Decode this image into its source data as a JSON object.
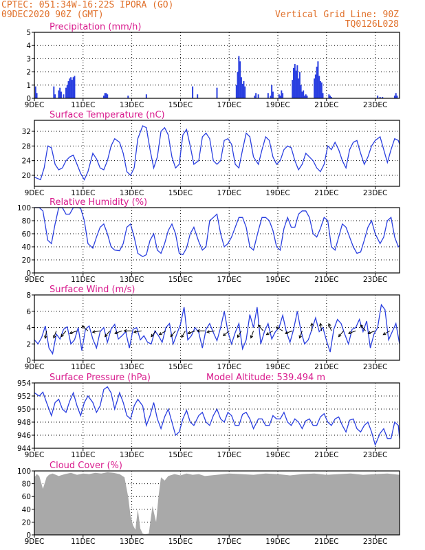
{
  "header": {
    "left_line1": "CPTEC:  051:34W-16:22S  IPORA (GO)",
    "left_line2": "09DEC2020 90Z (GMT)",
    "right_line1": "Vertical Grid Line: 90Z",
    "right_line2": "TQ0126L028"
  },
  "colors": {
    "header": "#e0702a",
    "title": "#d8198c",
    "series": "#2a3fe0",
    "cloud": "#a9a9a9",
    "grid": "#000000"
  },
  "x_axis": {
    "tick_labels": [
      "9DEC",
      "11DEC",
      "13DEC",
      "15DEC",
      "17DEC",
      "19DEC",
      "21DEC",
      "23DEC"
    ],
    "tick_days": [
      0,
      2,
      4,
      6,
      8,
      10,
      12,
      14
    ],
    "range_days": [
      0,
      15
    ]
  },
  "chart_data": [
    {
      "id": "precip",
      "type": "bar",
      "title": "Precipitation (mm/h)",
      "ylim": [
        0,
        5
      ],
      "yticks": [
        0,
        1,
        2,
        3,
        4,
        5
      ],
      "time_days": [
        0.05,
        0.08,
        0.1,
        0.8,
        0.85,
        1.0,
        1.05,
        1.1,
        1.2,
        1.3,
        1.35,
        1.4,
        1.45,
        1.5,
        1.55,
        1.6,
        1.65,
        2.85,
        2.9,
        2.95,
        3.0,
        3.85,
        4.6,
        6.5,
        6.7,
        7.5,
        8.3,
        8.35,
        8.4,
        8.45,
        8.5,
        8.55,
        8.6,
        8.65,
        9.05,
        9.1,
        9.2,
        9.6,
        9.7,
        9.75,
        9.8,
        10.05,
        10.1,
        10.15,
        10.2,
        10.6,
        10.65,
        10.7,
        10.75,
        10.8,
        10.85,
        10.9,
        10.95,
        11.0,
        11.05,
        11.1,
        11.15,
        11.2,
        11.5,
        11.55,
        11.6,
        11.65,
        11.7,
        11.75,
        11.8,
        11.85,
        12.1,
        12.15,
        12.2,
        14.1,
        14.2,
        14.3,
        14.8,
        14.85,
        14.9
      ],
      "values": [
        0.9,
        0.2,
        0.4,
        0.9,
        0.3,
        0.6,
        0.8,
        0.5,
        0.3,
        0.8,
        1.0,
        1.3,
        1.5,
        1.6,
        1.4,
        1.6,
        1.7,
        0.2,
        0.4,
        0.4,
        0.3,
        0.2,
        0.3,
        0.9,
        0.3,
        0.8,
        1.0,
        2.0,
        3.2,
        2.8,
        1.6,
        1.1,
        1.3,
        0.9,
        0.2,
        0.4,
        0.3,
        0.4,
        0.2,
        1.0,
        0.5,
        0.3,
        0.2,
        0.6,
        0.4,
        1.4,
        2.3,
        2.6,
        2.1,
        2.5,
        1.5,
        2.0,
        1.0,
        0.5,
        0.6,
        0.2,
        0.3,
        0.2,
        1.5,
        1.8,
        2.4,
        2.8,
        1.7,
        1.3,
        1.2,
        0.4,
        0.3,
        0.2,
        0.1,
        0.2,
        0.1,
        0.1,
        0.2,
        0.4,
        0.2
      ]
    },
    {
      "id": "temp",
      "type": "line",
      "title": "Surface Temperature (nC)",
      "ylim": [
        17,
        35
      ],
      "yticks": [
        20,
        24,
        28,
        32
      ],
      "time_days": [
        0,
        0.25,
        0.4,
        0.55,
        0.7,
        0.85,
        1.0,
        1.15,
        1.3,
        1.45,
        1.6,
        1.75,
        1.9,
        2.05,
        2.2,
        2.4,
        2.55,
        2.7,
        2.85,
        3.0,
        3.15,
        3.3,
        3.5,
        3.65,
        3.8,
        3.95,
        4.1,
        4.25,
        4.45,
        4.6,
        4.75,
        4.9,
        5.05,
        5.2,
        5.35,
        5.5,
        5.65,
        5.8,
        5.95,
        6.1,
        6.25,
        6.4,
        6.55,
        6.75,
        6.9,
        7.05,
        7.2,
        7.35,
        7.5,
        7.65,
        7.8,
        7.95,
        8.1,
        8.25,
        8.4,
        8.55,
        8.7,
        8.85,
        9.0,
        9.2,
        9.35,
        9.5,
        9.65,
        9.8,
        9.95,
        10.1,
        10.25,
        10.4,
        10.55,
        10.7,
        10.85,
        11.0,
        11.15,
        11.3,
        11.45,
        11.6,
        11.75,
        11.9,
        12.05,
        12.2,
        12.35,
        12.5,
        12.65,
        12.8,
        12.95,
        13.1,
        13.25,
        13.4,
        13.55,
        13.7,
        13.85,
        14.0,
        14.2,
        14.35,
        14.5,
        14.65,
        14.8,
        14.95,
        15.0
      ],
      "values": [
        19.5,
        18.8,
        22,
        28,
        27.5,
        23,
        21.5,
        22,
        24,
        25,
        25.5,
        23,
        20.5,
        18.8,
        21,
        26,
        24.5,
        22,
        21.5,
        24,
        28,
        30,
        29,
        26,
        21,
        20,
        22,
        30,
        33.5,
        33,
        27,
        22,
        25,
        32,
        33,
        31,
        25,
        22,
        23,
        31,
        32.5,
        28,
        23,
        24,
        30.5,
        31.5,
        30,
        24,
        23,
        24,
        29.5,
        30,
        28.5,
        23,
        22,
        27,
        31.5,
        30.5,
        25,
        23,
        27,
        30.5,
        29.5,
        25,
        23,
        24,
        27,
        28,
        27.5,
        24,
        21.5,
        23,
        26,
        25,
        24,
        22,
        21,
        23,
        28,
        27,
        29,
        27,
        24,
        22,
        27,
        29,
        29.5,
        26,
        23,
        25,
        28,
        29.5,
        30.5,
        27,
        23.5,
        27,
        30,
        29.5,
        28.5
      ]
    },
    {
      "id": "rh",
      "type": "line",
      "title": "Relative Humidity (%)",
      "ylim": [
        0,
        100
      ],
      "yticks": [
        0,
        20,
        40,
        60,
        80,
        100
      ],
      "time_days": [
        0,
        0.2,
        0.35,
        0.55,
        0.7,
        0.85,
        1.0,
        1.15,
        1.3,
        1.45,
        1.6,
        1.75,
        1.9,
        2.05,
        2.2,
        2.4,
        2.55,
        2.7,
        2.85,
        3.0,
        3.15,
        3.3,
        3.5,
        3.65,
        3.8,
        3.95,
        4.1,
        4.25,
        4.45,
        4.6,
        4.75,
        4.9,
        5.05,
        5.2,
        5.35,
        5.5,
        5.65,
        5.8,
        5.95,
        6.1,
        6.25,
        6.4,
        6.55,
        6.75,
        6.9,
        7.05,
        7.2,
        7.35,
        7.5,
        7.65,
        7.8,
        7.95,
        8.1,
        8.25,
        8.4,
        8.55,
        8.7,
        8.85,
        9.0,
        9.2,
        9.35,
        9.5,
        9.65,
        9.8,
        9.95,
        10.1,
        10.25,
        10.4,
        10.55,
        10.7,
        10.85,
        11.0,
        11.15,
        11.3,
        11.45,
        11.6,
        11.75,
        11.9,
        12.05,
        12.2,
        12.35,
        12.5,
        12.65,
        12.8,
        12.95,
        13.1,
        13.25,
        13.4,
        13.55,
        13.7,
        13.85,
        14.0,
        14.2,
        14.35,
        14.5,
        14.65,
        14.8,
        14.95,
        15.0
      ],
      "values": [
        100,
        100,
        95,
        50,
        45,
        75,
        100,
        100,
        90,
        90,
        100,
        100,
        99,
        80,
        45,
        38,
        55,
        70,
        75,
        60,
        40,
        35,
        34,
        45,
        70,
        75,
        55,
        30,
        25,
        28,
        50,
        60,
        35,
        30,
        45,
        65,
        75,
        60,
        30,
        28,
        38,
        60,
        70,
        48,
        35,
        40,
        80,
        85,
        90,
        60,
        40,
        45,
        55,
        70,
        85,
        85,
        70,
        40,
        35,
        65,
        85,
        85,
        80,
        65,
        40,
        35,
        68,
        85,
        70,
        70,
        90,
        95,
        95,
        85,
        60,
        55,
        68,
        85,
        80,
        40,
        35,
        55,
        75,
        70,
        55,
        40,
        30,
        32,
        50,
        70,
        80,
        60,
        45,
        55,
        80,
        85,
        55,
        40,
        42
      ]
    },
    {
      "id": "wind",
      "type": "line",
      "title": "Surface Wind (m/s)",
      "ylim": [
        0,
        8
      ],
      "yticks": [
        0,
        2,
        4,
        6,
        8
      ],
      "time_days": [
        0,
        0.15,
        0.3,
        0.45,
        0.6,
        0.75,
        0.9,
        1.05,
        1.2,
        1.35,
        1.5,
        1.65,
        1.8,
        1.95,
        2.1,
        2.25,
        2.4,
        2.55,
        2.7,
        2.85,
        3.0,
        3.15,
        3.3,
        3.45,
        3.6,
        3.75,
        3.9,
        4.05,
        4.2,
        4.35,
        4.5,
        4.65,
        4.8,
        4.95,
        5.1,
        5.25,
        5.4,
        5.55,
        5.7,
        5.85,
        6.0,
        6.15,
        6.3,
        6.45,
        6.6,
        6.75,
        6.9,
        7.05,
        7.2,
        7.35,
        7.5,
        7.65,
        7.8,
        7.95,
        8.1,
        8.25,
        8.4,
        8.55,
        8.7,
        8.85,
        9.0,
        9.15,
        9.3,
        9.45,
        9.6,
        9.75,
        9.9,
        10.05,
        10.2,
        10.35,
        10.5,
        10.65,
        10.8,
        10.95,
        11.1,
        11.25,
        11.4,
        11.55,
        11.7,
        11.85,
        12.0,
        12.15,
        12.3,
        12.45,
        12.6,
        12.75,
        12.9,
        13.05,
        13.2,
        13.35,
        13.5,
        13.65,
        13.8,
        13.95,
        14.1,
        14.25,
        14.4,
        14.55,
        14.7,
        14.85,
        15.0
      ],
      "values": [
        2.5,
        2.0,
        2.8,
        4.2,
        1.5,
        0.8,
        3.2,
        2.6,
        3.8,
        4.1,
        2.0,
        2.5,
        4.0,
        1.2,
        3.8,
        4.2,
        2.6,
        1.5,
        3.5,
        4.0,
        2.2,
        3.8,
        4.4,
        2.6,
        3.0,
        3.5,
        1.5,
        3.8,
        4.0,
        2.5,
        3.0,
        2.2,
        2.0,
        3.6,
        3.0,
        2.2,
        4.0,
        4.5,
        2.0,
        3.2,
        4.4,
        6.5,
        2.5,
        3.0,
        4.0,
        3.4,
        1.5,
        3.8,
        4.5,
        3.4,
        2.4,
        4.0,
        6.0,
        3.5,
        2.0,
        3.4,
        4.5,
        1.4,
        2.5,
        5.6,
        4.0,
        6.5,
        2.0,
        3.5,
        4.5,
        2.6,
        3.5,
        4.0,
        5.5,
        3.5,
        2.2,
        3.8,
        6.0,
        3.6,
        2.0,
        2.5,
        3.8,
        5.2,
        3.5,
        4.0,
        2.4,
        1.0,
        3.8,
        5.0,
        4.5,
        3.2,
        2.0,
        3.8,
        4.0,
        5.0,
        3.5,
        4.8,
        1.5,
        3.2,
        4.0,
        6.8,
        6.2,
        2.5,
        3.5,
        4.5,
        2.0
      ],
      "arrow_days": [
        0.5,
        0.9,
        1.3,
        1.75,
        2.2,
        2.7,
        3.1,
        3.6,
        4.0,
        4.4,
        5.0,
        5.4,
        5.8,
        6.2,
        6.6,
        7.0,
        7.4,
        8.0,
        8.5,
        9.0,
        9.4,
        9.8,
        10.2,
        10.6,
        11.0,
        11.4,
        11.8,
        12.2,
        12.7,
        13.2,
        13.6,
        14.0,
        14.6
      ],
      "arrow_dir_deg": [
        260,
        250,
        230,
        200,
        140,
        190,
        230,
        200,
        180,
        190,
        230,
        210,
        230,
        240,
        200,
        180,
        190,
        220,
        240,
        250,
        130,
        210,
        150,
        200,
        250,
        90,
        100,
        110,
        230,
        200,
        130,
        200,
        210
      ]
    },
    {
      "id": "pres",
      "type": "line",
      "title": "Surface Pressure (hPa)",
      "subtitle": "Model Altitude: 539.494 m",
      "ylim": [
        944,
        954
      ],
      "yticks": [
        944,
        946,
        948,
        950,
        952,
        954
      ],
      "time_days": [
        0,
        0.2,
        0.35,
        0.5,
        0.7,
        0.85,
        1.0,
        1.15,
        1.3,
        1.45,
        1.6,
        1.75,
        1.9,
        2.05,
        2.2,
        2.4,
        2.55,
        2.7,
        2.85,
        3.0,
        3.15,
        3.3,
        3.5,
        3.65,
        3.8,
        3.95,
        4.1,
        4.25,
        4.45,
        4.6,
        4.75,
        4.9,
        5.05,
        5.2,
        5.35,
        5.5,
        5.65,
        5.8,
        5.95,
        6.1,
        6.25,
        6.4,
        6.55,
        6.75,
        6.9,
        7.05,
        7.2,
        7.35,
        7.5,
        7.65,
        7.8,
        7.95,
        8.1,
        8.25,
        8.4,
        8.55,
        8.7,
        8.85,
        9.0,
        9.2,
        9.35,
        9.5,
        9.65,
        9.8,
        9.95,
        10.1,
        10.25,
        10.4,
        10.55,
        10.7,
        10.85,
        11.0,
        11.15,
        11.3,
        11.45,
        11.6,
        11.75,
        11.9,
        12.05,
        12.2,
        12.35,
        12.5,
        12.65,
        12.8,
        12.95,
        13.1,
        13.25,
        13.4,
        13.55,
        13.7,
        13.85,
        14.0,
        14.2,
        14.35,
        14.5,
        14.65,
        14.8,
        14.95,
        15.0
      ],
      "values": [
        952.5,
        952.0,
        952.6,
        951,
        949,
        951,
        951.5,
        950,
        949.5,
        951.2,
        952.5,
        950.5,
        949,
        951,
        952,
        951,
        949.5,
        950.5,
        953,
        953.4,
        952.5,
        950,
        952.5,
        951,
        949,
        948.5,
        950.5,
        951.5,
        950.5,
        947.5,
        949,
        951,
        948.5,
        947,
        948.8,
        950,
        948,
        946,
        946.5,
        948.5,
        949.8,
        948,
        947.5,
        949,
        949.5,
        948,
        947.5,
        949,
        950,
        948.5,
        948,
        949.5,
        949,
        947.5,
        947.5,
        949.2,
        949.5,
        948.5,
        947,
        948.5,
        948.5,
        947.5,
        947.5,
        949,
        948.5,
        948.5,
        949.5,
        948,
        947.5,
        948.5,
        948,
        947,
        948.2,
        948.5,
        947.5,
        947.5,
        948.8,
        949.3,
        948,
        947.5,
        948.5,
        948.8,
        947.5,
        946.5,
        948.3,
        948.5,
        947,
        946.5,
        947.5,
        948,
        946.5,
        944.5,
        946.3,
        947,
        945.5,
        945.5,
        948,
        947.5,
        945.5
      ]
    },
    {
      "id": "cloud",
      "type": "area",
      "title": "Cloud Cover (%)",
      "ylim": [
        0,
        100
      ],
      "yticks": [
        0,
        20,
        40,
        60,
        80,
        100
      ],
      "time_days": [
        0,
        0.1,
        0.2,
        0.35,
        0.5,
        0.6,
        0.75,
        1.0,
        1.25,
        1.5,
        1.75,
        2.0,
        2.25,
        2.5,
        2.75,
        3.0,
        3.25,
        3.5,
        3.7,
        3.85,
        3.95,
        4.05,
        4.15,
        4.25,
        4.35,
        4.45,
        4.55,
        4.7,
        4.85,
        5.0,
        5.1,
        5.2,
        5.35,
        5.5,
        5.75,
        6.0,
        6.25,
        6.5,
        6.75,
        7.0,
        7.5,
        8.0,
        8.5,
        9.0,
        9.5,
        10.0,
        10.5,
        11.0,
        11.5,
        12.0,
        12.5,
        13.0,
        13.5,
        14.0,
        14.5,
        15.0
      ],
      "values": [
        90,
        95,
        92,
        72,
        90,
        94,
        96,
        92,
        95,
        97,
        94,
        96,
        95,
        97,
        96,
        98,
        97,
        95,
        90,
        60,
        30,
        15,
        8,
        40,
        10,
        2,
        1,
        2,
        45,
        20,
        60,
        90,
        85,
        92,
        95,
        93,
        96,
        94,
        95,
        92,
        94,
        96,
        95,
        94,
        96,
        95,
        93,
        95,
        96,
        94,
        95,
        96,
        94,
        95,
        96,
        94
      ]
    }
  ]
}
